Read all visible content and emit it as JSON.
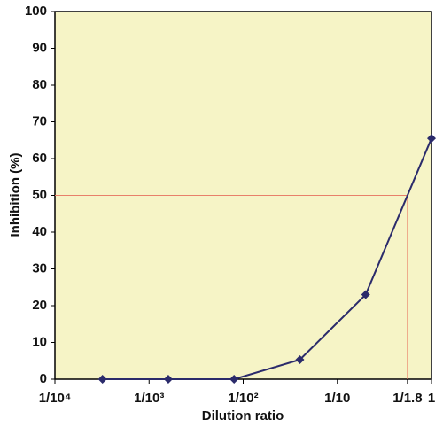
{
  "chart_data": {
    "type": "line",
    "xlabel": "Dilution ratio",
    "ylabel": "Inhibition (%)",
    "x": [
      0.00032,
      0.0016,
      0.008,
      0.04,
      0.2,
      1
    ],
    "series": [
      {
        "color": "#2b2b6b",
        "values": [
          0,
          0,
          0,
          5.3,
          23,
          65.5
        ]
      }
    ],
    "xscale": "log",
    "xlim": [
      0.0001,
      1
    ],
    "xticks": [
      {
        "value": 0.0001,
        "label": "1/10⁴"
      },
      {
        "value": 0.001,
        "label": "1/10³"
      },
      {
        "value": 0.01,
        "label": "1/10²"
      },
      {
        "value": 0.1,
        "label": "1/10"
      },
      {
        "value": 0.5556,
        "label": "1/1.8"
      },
      {
        "value": 1,
        "label": "1"
      }
    ],
    "ylim": [
      0,
      100
    ],
    "yticks": [
      0,
      10,
      20,
      30,
      40,
      50,
      60,
      70,
      80,
      90,
      100
    ],
    "reference": {
      "x": 0.5556,
      "y": 50,
      "color": "#e8806a"
    },
    "background": "#f6f4c6"
  }
}
